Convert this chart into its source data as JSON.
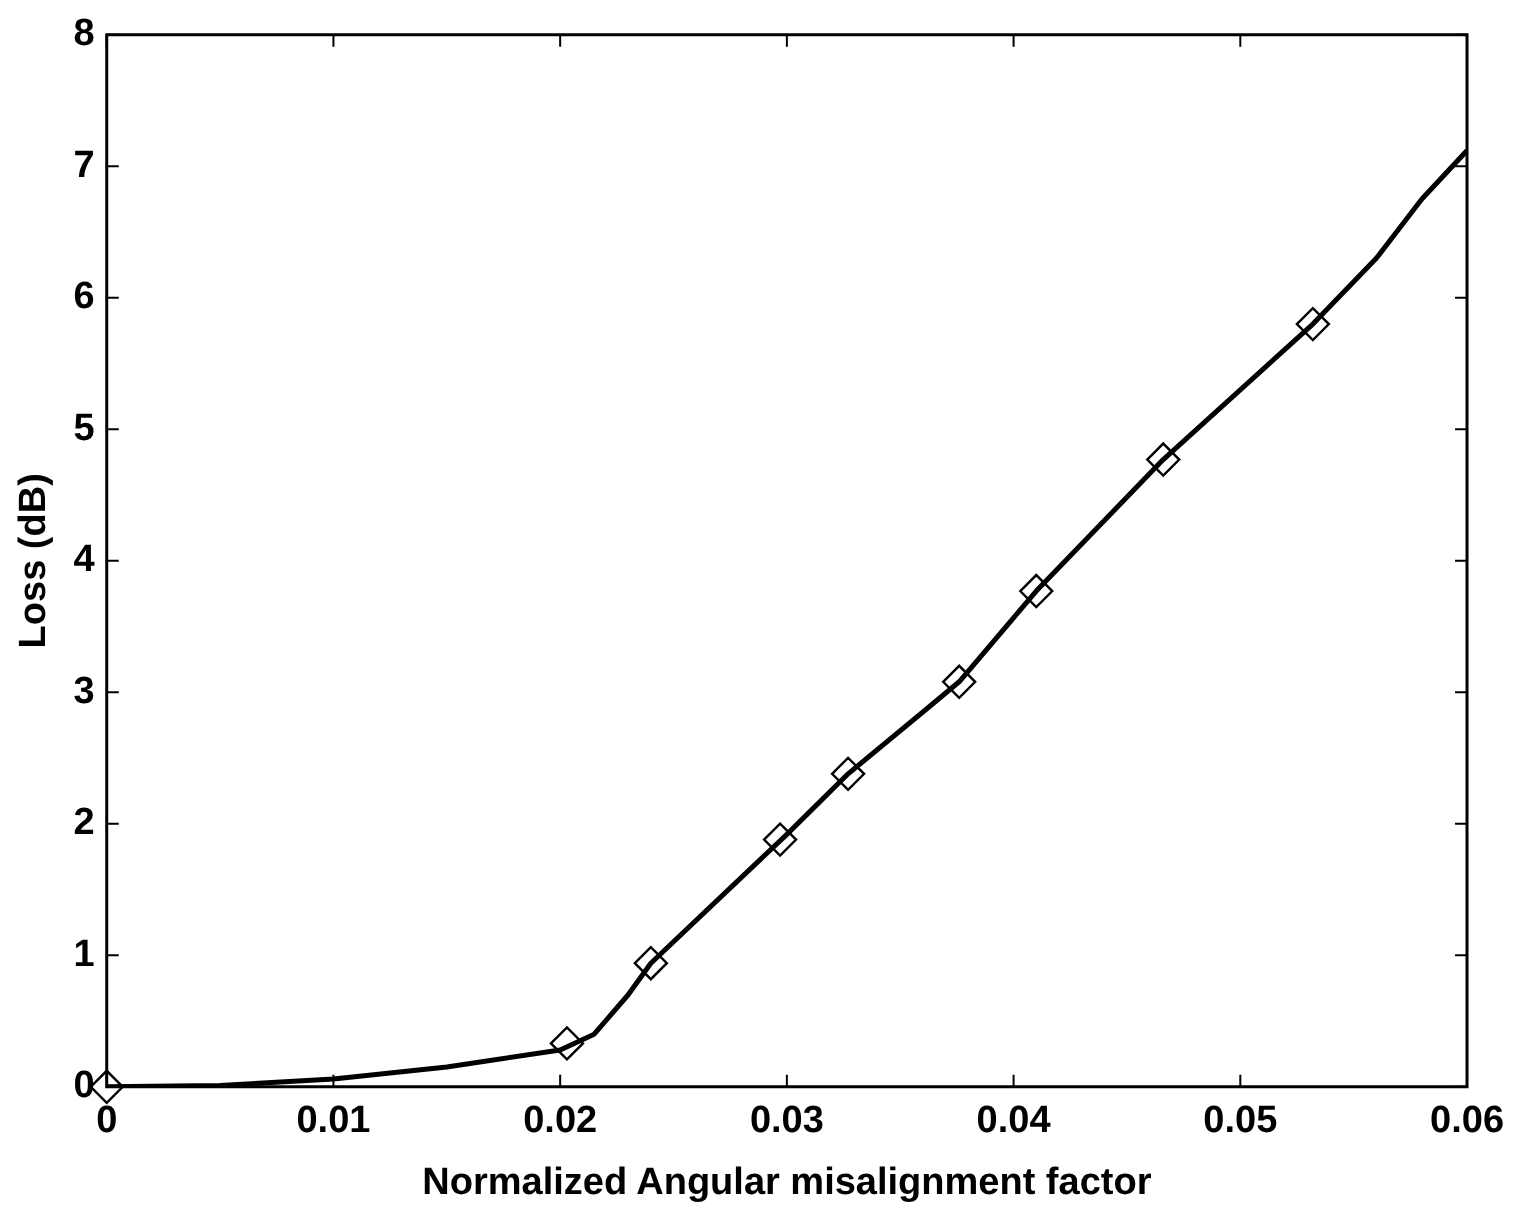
{
  "chart_data": {
    "type": "line",
    "xlabel": "Normalized Angular misalignment factor",
    "ylabel": "Loss (dB)",
    "xlim": [
      0,
      0.06
    ],
    "xticks": [
      0,
      0.01,
      0.02,
      0.03,
      0.04,
      0.05,
      0.06
    ],
    "ylim": [
      0,
      8
    ],
    "yticks": [
      0,
      1,
      2,
      3,
      4,
      5,
      6,
      7,
      8
    ],
    "grid": false,
    "legend": false,
    "series": [
      {
        "color": "#000000",
        "marker": "none",
        "x": [
          0,
          0.005,
          0.01,
          0.015,
          0.02,
          0.0215,
          0.023,
          0.024,
          0.03,
          0.0327,
          0.036,
          0.0376,
          0.041,
          0.0466,
          0.0532,
          0.056,
          0.058,
          0.06
        ],
        "values": [
          0,
          0.01,
          0.06,
          0.15,
          0.28,
          0.4,
          0.7,
          0.94,
          1.92,
          2.38,
          2.85,
          3.08,
          3.77,
          4.77,
          5.8,
          6.3,
          6.75,
          7.12
        ]
      },
      {
        "type": "scatter",
        "color": "#000000",
        "marker": "diamond",
        "x": [
          0,
          0.0203,
          0.024,
          0.0297,
          0.0327,
          0.0376,
          0.041,
          0.0466,
          0.0532
        ],
        "values": [
          0,
          0.33,
          0.94,
          1.88,
          2.38,
          3.08,
          3.77,
          4.77,
          5.8
        ]
      }
    ]
  }
}
